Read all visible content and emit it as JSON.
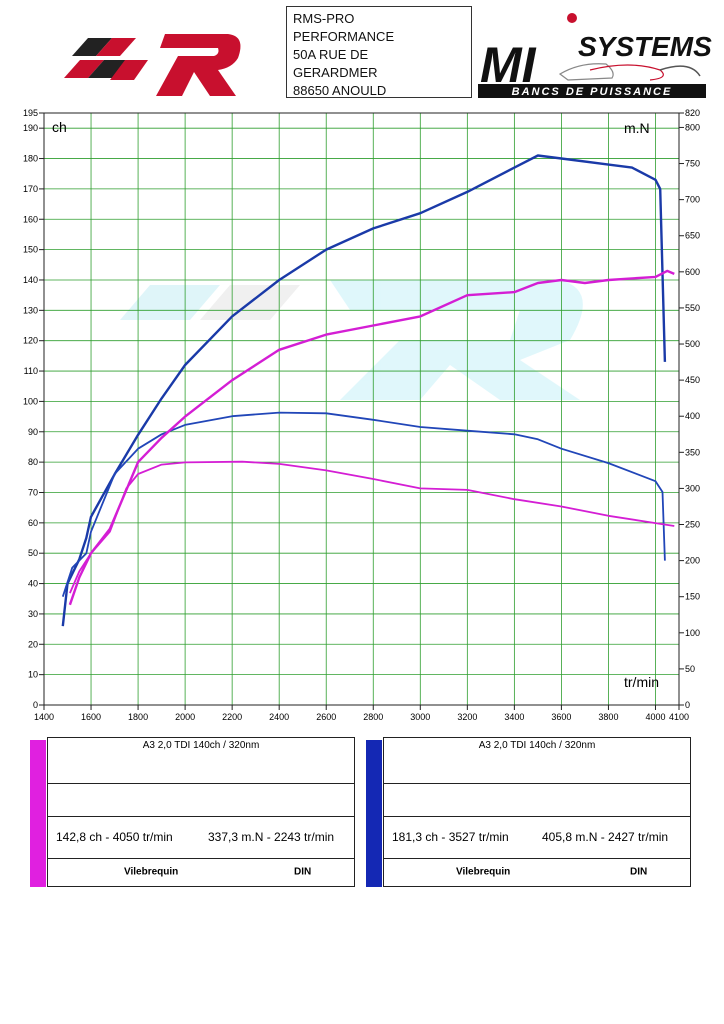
{
  "header": {
    "address": [
      "RMS-PRO",
      "PERFORMANCE",
      "50A RUE DE",
      "GERARDMER",
      "88650 ANOULD"
    ],
    "logo_right": {
      "top": "SYSTEMS",
      "main": "MI",
      "bottom": "BANCS DE PUISSANCE"
    }
  },
  "chart_data": {
    "type": "line",
    "y_label": "ch",
    "y2_label": "m.N",
    "x_label": "tr/min",
    "xlim": [
      1400,
      4100
    ],
    "xticks": [
      1400,
      1600,
      1800,
      2000,
      2200,
      2400,
      2600,
      2800,
      3000,
      3200,
      3400,
      3600,
      3800,
      4000,
      4100
    ],
    "ylim": [
      0,
      195
    ],
    "yticks": [
      0,
      10,
      20,
      30,
      40,
      50,
      60,
      70,
      80,
      90,
      100,
      110,
      120,
      130,
      140,
      150,
      160,
      170,
      180,
      190,
      195
    ],
    "y2lim": [
      0,
      820
    ],
    "y2ticks": [
      0,
      50,
      100,
      150,
      200,
      250,
      300,
      350,
      400,
      450,
      500,
      550,
      600,
      650,
      700,
      750,
      800,
      820
    ],
    "grid": true,
    "grid_color": "#2e9e2e",
    "series": [
      {
        "color": "#1a3aa8",
        "axis": "y",
        "x": [
          1480,
          1500,
          1550,
          1580,
          1600,
          1700,
          1800,
          1900,
          2000,
          2200,
          2400,
          2600,
          2800,
          3000,
          3200,
          3400,
          3500,
          3600,
          3800,
          3900,
          4000,
          4020,
          4040
        ],
        "values": [
          26,
          40,
          48,
          55,
          62,
          76,
          89,
          101,
          112,
          128,
          140,
          150,
          157,
          162,
          169,
          177,
          181,
          180,
          178,
          177,
          173,
          170,
          113
        ]
      },
      {
        "color": "#2146b8",
        "axis": "y2",
        "x": [
          1480,
          1520,
          1580,
          1600,
          1700,
          1800,
          1900,
          2000,
          2200,
          2400,
          2600,
          2800,
          3000,
          3200,
          3400,
          3500,
          3600,
          3800,
          4000,
          4030,
          4040
        ],
        "values": [
          150,
          190,
          210,
          240,
          320,
          355,
          375,
          388,
          400,
          405,
          404,
          395,
          385,
          380,
          375,
          368,
          355,
          335,
          310,
          295,
          200
        ]
      },
      {
        "color": "#d41ed4",
        "axis": "y",
        "x": [
          1510,
          1550,
          1600,
          1680,
          1800,
          1900,
          2000,
          2200,
          2400,
          2600,
          2800,
          3000,
          3200,
          3400,
          3500,
          3600,
          3700,
          3800,
          4000,
          4050,
          4080
        ],
        "values": [
          33,
          42,
          50,
          58,
          80,
          88,
          95,
          107,
          117,
          122,
          125,
          128,
          135,
          136,
          139,
          140,
          139,
          140,
          141,
          143,
          142
        ]
      },
      {
        "color": "#d41ed4",
        "axis": "y2",
        "x": [
          1510,
          1550,
          1600,
          1680,
          1750,
          1800,
          1900,
          2000,
          2243,
          2400,
          2600,
          2800,
          3000,
          3200,
          3400,
          3600,
          3800,
          4000,
          4080
        ],
        "values": [
          155,
          185,
          210,
          240,
          300,
          320,
          333,
          336,
          337,
          334,
          325,
          313,
          300,
          298,
          285,
          275,
          262,
          252,
          248
        ]
      }
    ]
  },
  "legend_panels": [
    {
      "color": "#e020e0",
      "title": "A3 2,0 TDI 140ch / 320nm",
      "power": "142,8 ch - 4050 tr/min",
      "torque": "337,3 m.N - 2243 tr/min",
      "crank": "Vilebrequin",
      "norm": "DIN"
    },
    {
      "color": "#1428b4",
      "title": "A3 2,0 TDI 140ch / 320nm",
      "power": "181,3 ch - 3527 tr/min",
      "torque": "405,8 m.N - 2427 tr/min",
      "crank": "Vilebrequin",
      "norm": "DIN"
    }
  ]
}
